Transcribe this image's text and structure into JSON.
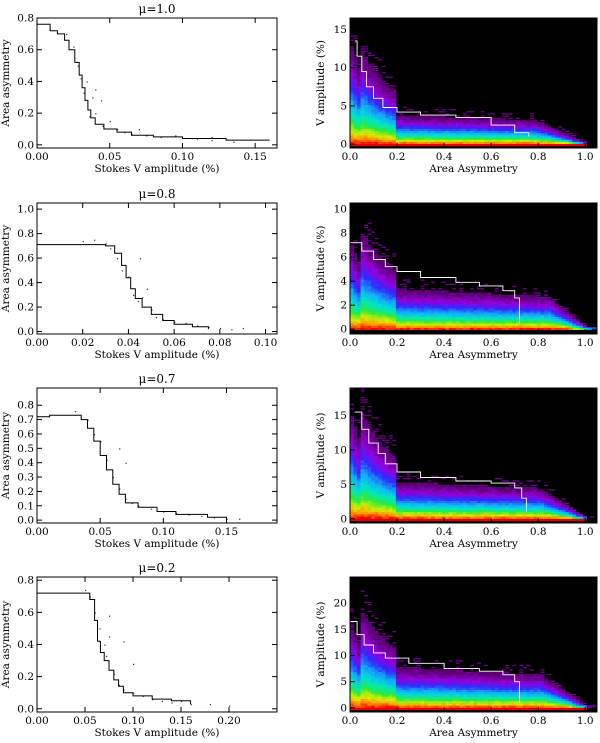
{
  "chart_data": [
    {
      "type": "scatter",
      "title": "μ=1.0",
      "xlabel": "Stokes V amplitude (%)",
      "ylabel": "Area asymmetry",
      "xlim": [
        0,
        0.165
      ],
      "ylim": [
        -0.02,
        0.8
      ],
      "xticks": [
        "0.00",
        "0.05",
        "0.10",
        "0.15"
      ],
      "xtick_values": [
        0,
        0.05,
        0.1,
        0.15
      ],
      "yticks": [
        "0.0",
        "0.2",
        "0.4",
        "0.6",
        "0.8"
      ],
      "ytick_values": [
        0,
        0.2,
        0.4,
        0.6,
        0.8
      ],
      "step_curve": [
        [
          0.0,
          0.76
        ],
        [
          0.008,
          0.76
        ],
        [
          0.009,
          0.72
        ],
        [
          0.014,
          0.7
        ],
        [
          0.019,
          0.66
        ],
        [
          0.022,
          0.6
        ],
        [
          0.026,
          0.52
        ],
        [
          0.029,
          0.44
        ],
        [
          0.031,
          0.36
        ],
        [
          0.033,
          0.28
        ],
        [
          0.035,
          0.22
        ],
        [
          0.037,
          0.17
        ],
        [
          0.04,
          0.13
        ],
        [
          0.046,
          0.1
        ],
        [
          0.055,
          0.08
        ],
        [
          0.065,
          0.06
        ],
        [
          0.08,
          0.05
        ],
        [
          0.1,
          0.04
        ],
        [
          0.13,
          0.03
        ],
        [
          0.16,
          0.03
        ]
      ],
      "scatter": [
        [
          0.02,
          0.7
        ],
        [
          0.025,
          0.62
        ],
        [
          0.028,
          0.5
        ],
        [
          0.03,
          0.42
        ],
        [
          0.032,
          0.33
        ],
        [
          0.034,
          0.4
        ],
        [
          0.036,
          0.18
        ],
        [
          0.038,
          0.3
        ],
        [
          0.04,
          0.2
        ],
        [
          0.045,
          0.12
        ],
        [
          0.05,
          0.15
        ],
        [
          0.055,
          0.1
        ],
        [
          0.06,
          0.08
        ],
        [
          0.065,
          0.07
        ],
        [
          0.07,
          0.1
        ],
        [
          0.075,
          0.06
        ],
        [
          0.085,
          0.05
        ],
        [
          0.095,
          0.06
        ],
        [
          0.11,
          0.04
        ],
        [
          0.12,
          0.05
        ],
        [
          0.12,
          0.03
        ],
        [
          0.135,
          0.02
        ],
        [
          0.04,
          0.35
        ],
        [
          0.044,
          0.28
        ]
      ]
    },
    {
      "type": "heatmap",
      "title": "",
      "xlabel": "Area Asymmetry",
      "ylabel": "V amplitude (%)",
      "xlim": [
        0,
        1.05
      ],
      "ylim": [
        -0.5,
        16.5
      ],
      "xticks": [
        "0.0",
        "0.2",
        "0.4",
        "0.6",
        "0.8",
        "1.0"
      ],
      "xtick_values": [
        0,
        0.2,
        0.4,
        0.6,
        0.8,
        1.0
      ],
      "yticks": [
        "0",
        "5",
        "10",
        "15"
      ],
      "ytick_values": [
        0,
        5,
        10,
        15
      ],
      "vmax": 13.5,
      "core_top": 3.2,
      "knee": 0.8,
      "step_curve": [
        [
          0.02,
          13.5
        ],
        [
          0.03,
          11.5
        ],
        [
          0.05,
          9.5
        ],
        [
          0.07,
          7.5
        ],
        [
          0.1,
          6.0
        ],
        [
          0.14,
          4.8
        ],
        [
          0.2,
          4.2
        ],
        [
          0.3,
          3.8
        ],
        [
          0.45,
          3.5
        ],
        [
          0.6,
          2.5
        ],
        [
          0.7,
          1.5
        ],
        [
          0.76,
          1.0
        ]
      ]
    },
    {
      "type": "scatter",
      "title": "μ=0.8",
      "xlabel": "Stokes V amplitude (%)",
      "ylabel": "Area asymmetry",
      "xlim": [
        0,
        0.105
      ],
      "ylim": [
        -0.02,
        1.05
      ],
      "xticks": [
        "0.00",
        "0.02",
        "0.04",
        "0.06",
        "0.08",
        "0.10"
      ],
      "xtick_values": [
        0,
        0.02,
        0.04,
        0.06,
        0.08,
        0.1
      ],
      "yticks": [
        "0.0",
        "0.2",
        "0.4",
        "0.6",
        "0.8",
        "1.0"
      ],
      "ytick_values": [
        0,
        0.2,
        0.4,
        0.6,
        0.8,
        1.0
      ],
      "step_curve": [
        [
          0.0,
          0.71
        ],
        [
          0.025,
          0.71
        ],
        [
          0.03,
          0.7
        ],
        [
          0.034,
          0.64
        ],
        [
          0.037,
          0.54
        ],
        [
          0.039,
          0.44
        ],
        [
          0.041,
          0.35
        ],
        [
          0.043,
          0.27
        ],
        [
          0.046,
          0.2
        ],
        [
          0.05,
          0.14
        ],
        [
          0.055,
          0.09
        ],
        [
          0.06,
          0.06
        ],
        [
          0.068,
          0.04
        ],
        [
          0.075,
          0.02
        ]
      ],
      "scatter": [
        [
          0.02,
          0.74
        ],
        [
          0.025,
          0.75
        ],
        [
          0.03,
          0.72
        ],
        [
          0.032,
          0.68
        ],
        [
          0.035,
          0.6
        ],
        [
          0.037,
          0.5
        ],
        [
          0.04,
          0.45
        ],
        [
          0.042,
          0.3
        ],
        [
          0.044,
          0.25
        ],
        [
          0.046,
          0.28
        ],
        [
          0.05,
          0.18
        ],
        [
          0.052,
          0.12
        ],
        [
          0.055,
          0.1
        ],
        [
          0.06,
          0.08
        ],
        [
          0.065,
          0.07
        ],
        [
          0.07,
          0.05
        ],
        [
          0.075,
          0.04
        ],
        [
          0.08,
          0.03
        ],
        [
          0.085,
          0.02
        ],
        [
          0.09,
          0.03
        ],
        [
          0.045,
          0.6
        ],
        [
          0.048,
          0.35
        ]
      ]
    },
    {
      "type": "heatmap",
      "title": "",
      "xlabel": "Area Asymmetry",
      "ylabel": "V amplitude (%)",
      "xlim": [
        0,
        1.05
      ],
      "ylim": [
        -0.4,
        10.5
      ],
      "xticks": [
        "0.0",
        "0.2",
        "0.4",
        "0.6",
        "0.8",
        "1.0"
      ],
      "xtick_values": [
        0,
        0.2,
        0.4,
        0.6,
        0.8,
        1.0
      ],
      "yticks": [
        "0",
        "2",
        "4",
        "6",
        "8",
        "10"
      ],
      "ytick_values": [
        0,
        2,
        4,
        6,
        8,
        10
      ],
      "vmax": 7.5,
      "core_top": 2.8,
      "knee": 0.85,
      "step_curve": [
        [
          0.0,
          7.2
        ],
        [
          0.05,
          6.5
        ],
        [
          0.1,
          5.8
        ],
        [
          0.15,
          5.2
        ],
        [
          0.2,
          4.8
        ],
        [
          0.3,
          4.3
        ],
        [
          0.45,
          3.9
        ],
        [
          0.55,
          3.6
        ],
        [
          0.65,
          3.2
        ],
        [
          0.7,
          2.6
        ],
        [
          0.72,
          1.5
        ],
        [
          0.72,
          0.5
        ]
      ]
    },
    {
      "type": "scatter",
      "title": "μ=0.7",
      "xlabel": "Stokes V amplitude (%)",
      "ylabel": "Area asymmetry",
      "xlim": [
        0,
        0.19
      ],
      "ylim": [
        -0.02,
        0.92
      ],
      "xticks": [
        "0.00",
        "0.05",
        "0.10",
        "0.15"
      ],
      "xtick_values": [
        0,
        0.05,
        0.1,
        0.15
      ],
      "yticks": [
        "0.0",
        "0.1",
        "0.2",
        "0.3",
        "0.4",
        "0.5",
        "0.6",
        "0.7",
        "0.8"
      ],
      "ytick_values": [
        0,
        0.1,
        0.2,
        0.3,
        0.4,
        0.5,
        0.6,
        0.7,
        0.8
      ],
      "step_curve": [
        [
          0.0,
          0.72
        ],
        [
          0.01,
          0.73
        ],
        [
          0.03,
          0.73
        ],
        [
          0.035,
          0.7
        ],
        [
          0.04,
          0.64
        ],
        [
          0.045,
          0.55
        ],
        [
          0.05,
          0.45
        ],
        [
          0.055,
          0.35
        ],
        [
          0.06,
          0.25
        ],
        [
          0.065,
          0.18
        ],
        [
          0.07,
          0.12
        ],
        [
          0.08,
          0.09
        ],
        [
          0.095,
          0.06
        ],
        [
          0.11,
          0.04
        ],
        [
          0.135,
          0.02
        ],
        [
          0.15,
          0.01
        ]
      ],
      "scatter": [
        [
          0.03,
          0.76
        ],
        [
          0.04,
          0.7
        ],
        [
          0.045,
          0.6
        ],
        [
          0.05,
          0.55
        ],
        [
          0.055,
          0.42
        ],
        [
          0.06,
          0.3
        ],
        [
          0.065,
          0.22
        ],
        [
          0.07,
          0.15
        ],
        [
          0.075,
          0.12
        ],
        [
          0.08,
          0.1
        ],
        [
          0.09,
          0.08
        ],
        [
          0.1,
          0.06
        ],
        [
          0.11,
          0.05
        ],
        [
          0.12,
          0.04
        ],
        [
          0.13,
          0.03
        ],
        [
          0.14,
          0.02
        ],
        [
          0.15,
          0.01
        ],
        [
          0.16,
          0.01
        ],
        [
          0.065,
          0.5
        ],
        [
          0.07,
          0.4
        ]
      ]
    },
    {
      "type": "heatmap",
      "title": "",
      "xlabel": "Area Asymmetry",
      "ylabel": "V amplitude (%)",
      "xlim": [
        0,
        1.05
      ],
      "ylim": [
        -0.6,
        19
      ],
      "xticks": [
        "0.0",
        "0.2",
        "0.4",
        "0.6",
        "0.8",
        "1.0"
      ],
      "xtick_values": [
        0,
        0.2,
        0.4,
        0.6,
        0.8,
        1.0
      ],
      "yticks": [
        "0",
        "5",
        "10",
        "15"
      ],
      "ytick_values": [
        0,
        5,
        10,
        15
      ],
      "vmax": 16,
      "core_top": 4.5,
      "knee": 0.82,
      "step_curve": [
        [
          0.02,
          15.5
        ],
        [
          0.05,
          13.0
        ],
        [
          0.08,
          11.0
        ],
        [
          0.12,
          9.5
        ],
        [
          0.15,
          8.0
        ],
        [
          0.2,
          6.8
        ],
        [
          0.3,
          6.0
        ],
        [
          0.45,
          5.5
        ],
        [
          0.6,
          5.2
        ],
        [
          0.7,
          4.5
        ],
        [
          0.73,
          3.0
        ],
        [
          0.75,
          1.0
        ]
      ]
    },
    {
      "type": "scatter",
      "title": "μ=0.2",
      "xlabel": "Stokes V amplitude (%)",
      "ylabel": "Area asymmetry",
      "xlim": [
        0,
        0.25
      ],
      "ylim": [
        -0.02,
        0.82
      ],
      "xticks": [
        "0.00",
        "0.05",
        "0.10",
        "0.15",
        "0.20"
      ],
      "xtick_values": [
        0,
        0.05,
        0.1,
        0.15,
        0.2
      ],
      "yticks": [
        "0.0",
        "0.2",
        "0.4",
        "0.6",
        "0.8"
      ],
      "ytick_values": [
        0,
        0.2,
        0.4,
        0.6,
        0.8
      ],
      "step_curve": [
        [
          0.0,
          0.72
        ],
        [
          0.05,
          0.72
        ],
        [
          0.055,
          0.68
        ],
        [
          0.06,
          0.55
        ],
        [
          0.063,
          0.42
        ],
        [
          0.066,
          0.35
        ],
        [
          0.07,
          0.3
        ],
        [
          0.075,
          0.24
        ],
        [
          0.08,
          0.18
        ],
        [
          0.085,
          0.14
        ],
        [
          0.09,
          0.1
        ],
        [
          0.1,
          0.08
        ],
        [
          0.12,
          0.06
        ],
        [
          0.14,
          0.05
        ],
        [
          0.16,
          0.03
        ]
      ],
      "scatter": [
        [
          0.05,
          0.74
        ],
        [
          0.055,
          0.7
        ],
        [
          0.06,
          0.6
        ],
        [
          0.065,
          0.5
        ],
        [
          0.07,
          0.4
        ],
        [
          0.072,
          0.33
        ],
        [
          0.075,
          0.45
        ],
        [
          0.08,
          0.22
        ],
        [
          0.085,
          0.15
        ],
        [
          0.09,
          0.12
        ],
        [
          0.1,
          0.1
        ],
        [
          0.11,
          0.08
        ],
        [
          0.12,
          0.06
        ],
        [
          0.13,
          0.05
        ],
        [
          0.14,
          0.04
        ],
        [
          0.15,
          0.05
        ],
        [
          0.16,
          0.03
        ],
        [
          0.18,
          0.03
        ],
        [
          0.2,
          0.02
        ],
        [
          0.075,
          0.58
        ],
        [
          0.09,
          0.42
        ],
        [
          0.1,
          0.28
        ]
      ]
    },
    {
      "type": "heatmap",
      "title": "",
      "xlabel": "Area Asymmetry",
      "ylabel": "V amplitude (%)",
      "xlim": [
        0,
        1.05
      ],
      "ylim": [
        -0.8,
        25
      ],
      "xticks": [
        "0.0",
        "0.2",
        "0.4",
        "0.6",
        "0.8",
        "1.0"
      ],
      "xtick_values": [
        0,
        0.2,
        0.4,
        0.6,
        0.8,
        1.0
      ],
      "yticks": [
        "0",
        "5",
        "10",
        "15",
        "20"
      ],
      "ytick_values": [
        0,
        5,
        10,
        15,
        20
      ],
      "vmax": 17,
      "core_top": 6.5,
      "knee": 0.82,
      "step_curve": [
        [
          0.0,
          16.5
        ],
        [
          0.03,
          14.0
        ],
        [
          0.06,
          12.0
        ],
        [
          0.1,
          10.5
        ],
        [
          0.15,
          9.5
        ],
        [
          0.25,
          8.5
        ],
        [
          0.4,
          7.5
        ],
        [
          0.55,
          7.0
        ],
        [
          0.65,
          6.3
        ],
        [
          0.7,
          5.0
        ],
        [
          0.72,
          3.0
        ],
        [
          0.72,
          1.0
        ]
      ]
    }
  ]
}
